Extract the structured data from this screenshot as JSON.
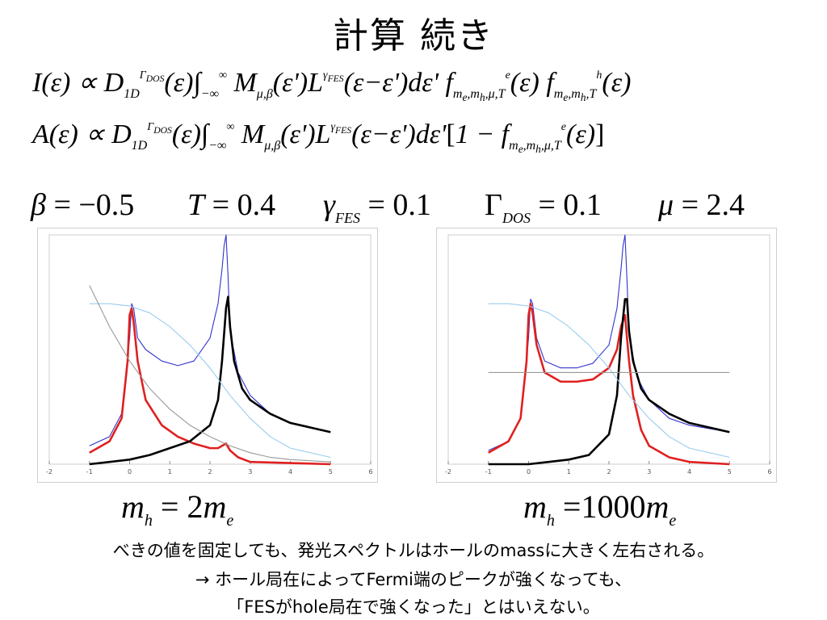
{
  "slide": {
    "title": "計算 続き",
    "params": {
      "beta": "−0.5",
      "T": "0.4",
      "gamma_fes": "0.1",
      "gamma_dos": "0.1",
      "mu": "2.4"
    },
    "captions": [
      "2",
      "1000"
    ],
    "notes": [
      "べきの値を固定しても、発光スペクトルはホールのmassに大きく左右される。",
      "→ ホール局在によってFermi端のピークが強くなっても、",
      "「FESがhole局在で強くなった」とはいえない。"
    ]
  },
  "chart_data": [
    {
      "type": "line",
      "xlim": [
        -2,
        6
      ],
      "ylim": [
        0,
        1
      ],
      "x_ticks": [
        "-2",
        "-1",
        "0",
        "1",
        "2",
        "3",
        "4",
        "5",
        "6"
      ],
      "grid": false,
      "series": [
        {
          "color": "#3333cc",
          "x": [
            -1,
            -0.5,
            -0.2,
            0,
            0.05,
            0.1,
            0.2,
            0.4,
            0.8,
            1.2,
            1.6,
            2.0,
            2.2,
            2.3,
            2.35,
            2.4,
            2.45,
            2.5,
            2.7,
            3,
            3.5,
            4,
            5
          ],
          "y": [
            0.08,
            0.12,
            0.22,
            0.55,
            0.7,
            0.68,
            0.55,
            0.5,
            0.45,
            0.43,
            0.45,
            0.55,
            0.7,
            0.85,
            0.95,
            1.0,
            0.82,
            0.58,
            0.4,
            0.3,
            0.22,
            0.18,
            0.14
          ]
        },
        {
          "color": "#e02020",
          "x": [
            -1,
            -0.5,
            -0.2,
            -0.05,
            0,
            0.05,
            0.1,
            0.2,
            0.4,
            0.8,
            1.2,
            1.6,
            2.0,
            2.2,
            2.3,
            2.4,
            2.5,
            2.7,
            3,
            4,
            5
          ],
          "y": [
            0.05,
            0.1,
            0.2,
            0.45,
            0.65,
            0.68,
            0.62,
            0.45,
            0.28,
            0.17,
            0.12,
            0.09,
            0.07,
            0.07,
            0.08,
            0.09,
            0.06,
            0.03,
            0.01,
            0.005,
            0.0
          ]
        },
        {
          "color": "#000000",
          "x": [
            -1,
            0,
            0.5,
            1,
            1.5,
            2,
            2.2,
            2.3,
            2.4,
            2.45,
            2.5,
            2.6,
            2.8,
            3,
            3.5,
            4,
            5
          ],
          "y": [
            0.0,
            0.02,
            0.04,
            0.07,
            0.1,
            0.17,
            0.28,
            0.45,
            0.68,
            0.73,
            0.6,
            0.45,
            0.33,
            0.28,
            0.22,
            0.18,
            0.14
          ]
        },
        {
          "color": "#99ccee",
          "x": [
            -1,
            -0.5,
            0,
            0.5,
            1,
            1.5,
            2,
            2.5,
            3,
            3.5,
            4,
            5
          ],
          "y": [
            0.7,
            0.7,
            0.69,
            0.66,
            0.6,
            0.52,
            0.42,
            0.3,
            0.2,
            0.12,
            0.07,
            0.03
          ]
        },
        {
          "color": "#999999",
          "x": [
            -1,
            -0.5,
            0,
            0.5,
            1,
            1.5,
            2,
            2.5,
            3,
            3.5,
            4,
            5
          ],
          "y": [
            0.78,
            0.6,
            0.45,
            0.33,
            0.24,
            0.17,
            0.12,
            0.08,
            0.05,
            0.03,
            0.02,
            0.01
          ]
        }
      ]
    },
    {
      "type": "line",
      "xlim": [
        -2,
        6
      ],
      "ylim": [
        0,
        1
      ],
      "x_ticks": [
        "-2",
        "-1",
        "0",
        "1",
        "2",
        "3",
        "4",
        "5",
        "6"
      ],
      "grid": false,
      "series": [
        {
          "color": "#3333cc",
          "x": [
            -1,
            -0.5,
            -0.2,
            0,
            0.05,
            0.1,
            0.2,
            0.4,
            0.8,
            1.2,
            1.6,
            2.0,
            2.2,
            2.3,
            2.35,
            2.4,
            2.45,
            2.5,
            2.7,
            3,
            3.5,
            4,
            5
          ],
          "y": [
            0.06,
            0.1,
            0.2,
            0.55,
            0.72,
            0.7,
            0.55,
            0.45,
            0.42,
            0.42,
            0.44,
            0.52,
            0.68,
            0.85,
            0.95,
            1.0,
            0.8,
            0.56,
            0.38,
            0.28,
            0.2,
            0.17,
            0.14
          ]
        },
        {
          "color": "#e02020",
          "x": [
            -1,
            -0.5,
            -0.2,
            -0.05,
            0,
            0.05,
            0.1,
            0.2,
            0.4,
            0.8,
            1.2,
            1.6,
            2.0,
            2.2,
            2.3,
            2.4,
            2.5,
            2.6,
            2.8,
            3,
            3.5,
            4,
            5
          ],
          "y": [
            0.05,
            0.1,
            0.2,
            0.45,
            0.65,
            0.7,
            0.66,
            0.52,
            0.4,
            0.36,
            0.36,
            0.37,
            0.42,
            0.5,
            0.6,
            0.65,
            0.45,
            0.3,
            0.15,
            0.08,
            0.03,
            0.01,
            0.0
          ]
        },
        {
          "color": "#000000",
          "x": [
            -1,
            0,
            0.5,
            1,
            1.5,
            2,
            2.2,
            2.3,
            2.4,
            2.45,
            2.5,
            2.6,
            2.8,
            3,
            3.5,
            4,
            5
          ],
          "y": [
            0.0,
            0.0,
            0.01,
            0.02,
            0.04,
            0.13,
            0.3,
            0.55,
            0.72,
            0.72,
            0.58,
            0.45,
            0.33,
            0.28,
            0.22,
            0.18,
            0.14
          ]
        },
        {
          "color": "#99ccee",
          "x": [
            -1,
            -0.5,
            0,
            0.5,
            1,
            1.5,
            2,
            2.5,
            3,
            3.5,
            4,
            5
          ],
          "y": [
            0.7,
            0.7,
            0.69,
            0.66,
            0.6,
            0.52,
            0.42,
            0.3,
            0.2,
            0.12,
            0.07,
            0.03
          ]
        },
        {
          "color": "#999999",
          "x": [
            -1,
            5
          ],
          "y": [
            0.4,
            0.4
          ]
        }
      ]
    }
  ]
}
